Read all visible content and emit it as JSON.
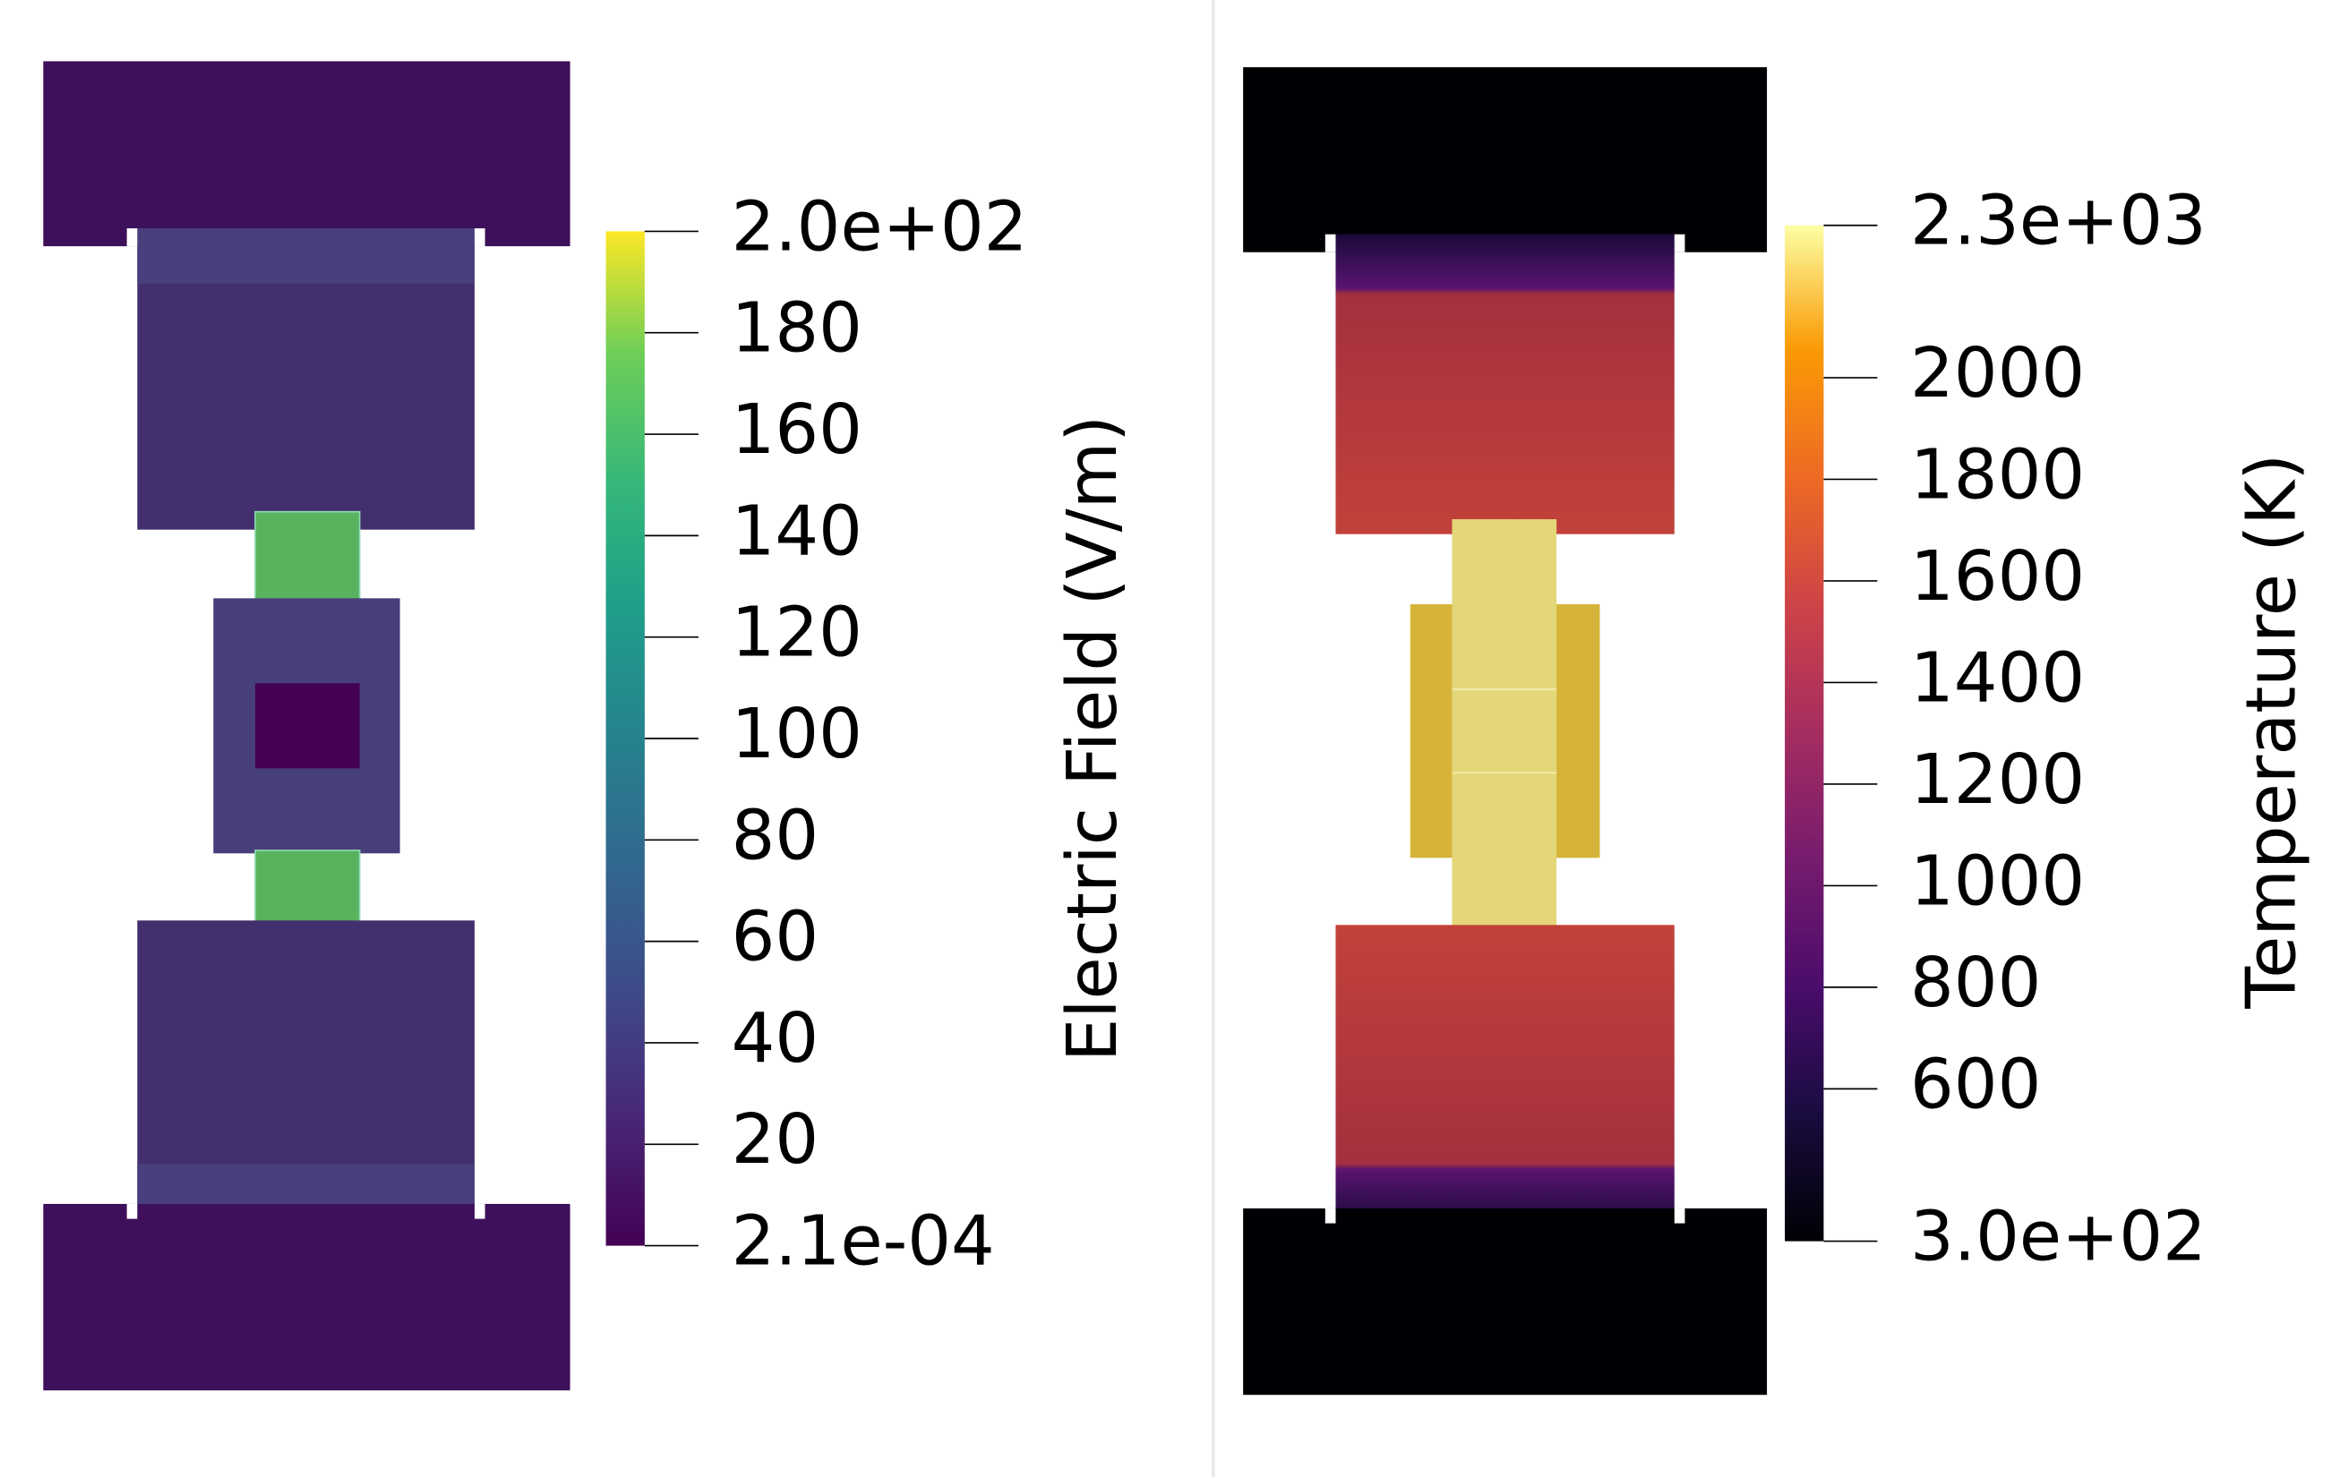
{
  "chart_data": [
    {
      "type": "colorbar",
      "title": "Electric Field (V/m)",
      "colormap": "viridis",
      "ylim": [
        0.00021,
        200
      ],
      "yticks": [
        {
          "value": 0.00021,
          "label": "2.1e-04"
        },
        20,
        40,
        60,
        80,
        100,
        120,
        140,
        160,
        180,
        {
          "value": 200,
          "label": "2.0e+02"
        }
      ]
    },
    {
      "type": "colorbar",
      "title": "Temperature (K)",
      "colormap": "inferno",
      "ylim": [
        300,
        2300
      ],
      "yticks": [
        {
          "value": 300,
          "label": "3.0e+02"
        },
        600,
        800,
        1000,
        1200,
        1400,
        1600,
        1800,
        2000,
        {
          "value": 2300,
          "label": "2.3e+03"
        }
      ]
    }
  ]
}
